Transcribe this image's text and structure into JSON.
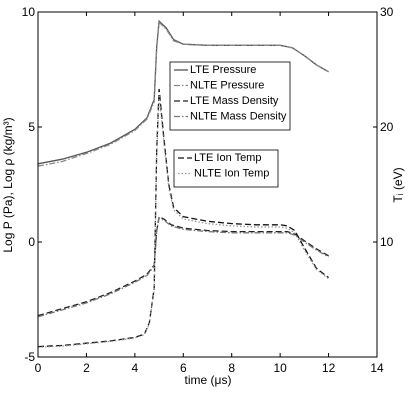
{
  "chart_data": {
    "type": "line",
    "title": "",
    "xlabel": "time (μs)",
    "ylabel_left": "Log P (Pa), Log ρ (kg/m³)",
    "ylabel_right": "Tᵢ (eV)",
    "xlim": [
      0,
      14
    ],
    "ylim_left": [
      -5,
      10
    ],
    "ylim_right": [
      0,
      30
    ],
    "x_ticks": [
      "0",
      "2",
      "4",
      "6",
      "8",
      "10",
      "12",
      "14"
    ],
    "y_left_ticks": [
      "-5",
      "0",
      "5",
      "10"
    ],
    "y_right_ticks": [
      "10",
      "20",
      "30"
    ],
    "grid": false,
    "legend_position": "top-right",
    "series": [
      {
        "name": "LTE Pressure",
        "axis": "left",
        "color": "#555555",
        "dash": "solid",
        "x": [
          0,
          1,
          2,
          3,
          4,
          4.5,
          4.8,
          4.9,
          5.0,
          5.3,
          5.6,
          6.0,
          7,
          8,
          9,
          10,
          10.5,
          11,
          11.5,
          12
        ],
        "y": [
          3.4,
          3.6,
          3.9,
          4.3,
          4.9,
          5.4,
          6.2,
          8.5,
          9.6,
          9.3,
          8.8,
          8.6,
          8.55,
          8.55,
          8.55,
          8.55,
          8.45,
          8.1,
          7.7,
          7.4
        ]
      },
      {
        "name": "NLTE Pressure",
        "axis": "left",
        "color": "#888888",
        "dash": "dashdot",
        "x": [
          0,
          1,
          2,
          3,
          4,
          4.5,
          4.8,
          4.9,
          5.0,
          5.3,
          5.6,
          6.0,
          7,
          8,
          9,
          10,
          10.5,
          11,
          11.5,
          12
        ],
        "y": [
          3.3,
          3.5,
          3.85,
          4.25,
          4.85,
          5.35,
          6.1,
          8.4,
          9.55,
          9.25,
          8.75,
          8.6,
          8.55,
          8.55,
          8.55,
          8.55,
          8.45,
          8.1,
          7.7,
          7.4
        ]
      },
      {
        "name": "LTE Mass Density",
        "axis": "left",
        "color": "#222222",
        "dash": "dash",
        "x": [
          0,
          1,
          2,
          3,
          4,
          4.5,
          4.8,
          4.9,
          5.0,
          5.2,
          5.5,
          6.0,
          7,
          8,
          9,
          10,
          10.3,
          10.6,
          11,
          11.5,
          12
        ],
        "y": [
          -3.2,
          -2.9,
          -2.6,
          -2.2,
          -1.7,
          -1.4,
          -1.0,
          0.5,
          1.1,
          1.0,
          0.75,
          0.6,
          0.5,
          0.45,
          0.45,
          0.45,
          0.45,
          0.35,
          0.05,
          -0.3,
          -0.6
        ]
      },
      {
        "name": "NLTE Mass Density",
        "axis": "left",
        "color": "#777777",
        "dash": "dashdot",
        "x": [
          0,
          1,
          2,
          3,
          4,
          4.5,
          4.8,
          4.9,
          5.0,
          5.2,
          5.5,
          6.0,
          7,
          8,
          9,
          10,
          10.3,
          10.6,
          11,
          11.5,
          12
        ],
        "y": [
          -3.25,
          -2.95,
          -2.65,
          -2.25,
          -1.75,
          -1.45,
          -1.05,
          0.45,
          1.05,
          0.95,
          0.7,
          0.55,
          0.45,
          0.4,
          0.4,
          0.4,
          0.4,
          0.3,
          0.0,
          -0.35,
          -0.65
        ]
      },
      {
        "name": "LTE Ion Temp",
        "axis": "right",
        "color": "#111111",
        "dash": "dash",
        "x": [
          0,
          1,
          2,
          3,
          4,
          4.4,
          4.6,
          4.8,
          4.9,
          5.0,
          5.2,
          5.4,
          5.6,
          6.0,
          7,
          8,
          9,
          10,
          10.3,
          10.6,
          11,
          11.5,
          12
        ],
        "y": [
          0.9,
          1.0,
          1.2,
          1.4,
          1.7,
          2.0,
          3.0,
          6.0,
          18.0,
          23.3,
          19.0,
          15.0,
          13.0,
          12.2,
          11.8,
          11.6,
          11.5,
          11.5,
          11.4,
          11.0,
          9.5,
          7.7,
          6.9
        ]
      },
      {
        "name": "NLTE Ion Temp",
        "axis": "right",
        "color": "#999999",
        "dash": "dot",
        "x": [
          0,
          1,
          2,
          3,
          4,
          4.4,
          4.6,
          4.8,
          4.9,
          5.0,
          5.2,
          5.4,
          5.6,
          6.0,
          7,
          8,
          9,
          10,
          10.3,
          10.6,
          11,
          11.5,
          12
        ],
        "y": [
          0.85,
          0.95,
          1.15,
          1.35,
          1.65,
          1.95,
          2.9,
          5.8,
          17.5,
          22.8,
          18.6,
          14.7,
          12.8,
          12.0,
          11.6,
          11.4,
          11.3,
          11.3,
          11.2,
          10.8,
          9.3,
          7.6,
          6.8
        ]
      }
    ]
  }
}
